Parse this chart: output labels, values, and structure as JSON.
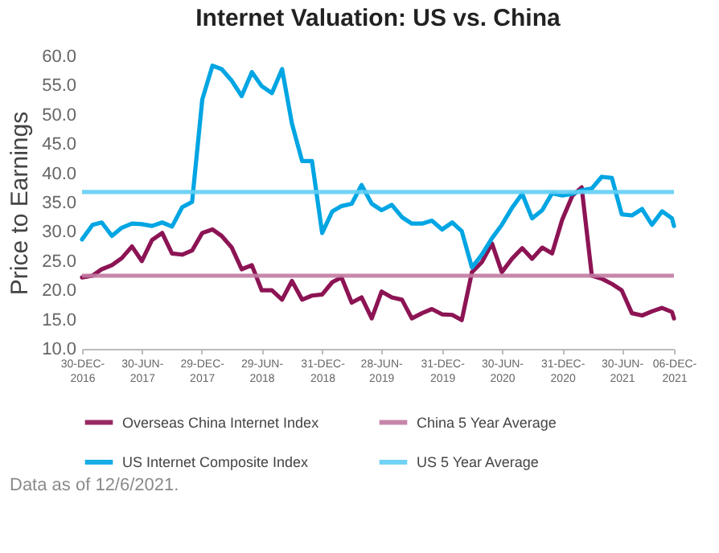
{
  "chart_data": {
    "type": "line",
    "title": "Internet Valuation: US vs. China",
    "ylabel": "Price to Earnings",
    "x": [
      "2016-12-30",
      "2017-01-31",
      "2017-02-28",
      "2017-03-31",
      "2017-04-30",
      "2017-05-31",
      "2017-06-30",
      "2017-07-31",
      "2017-08-31",
      "2017-09-30",
      "2017-10-31",
      "2017-11-30",
      "2017-12-31",
      "2018-01-31",
      "2018-02-28",
      "2018-03-31",
      "2018-04-30",
      "2018-05-31",
      "2018-06-30",
      "2018-07-31",
      "2018-08-31",
      "2018-09-30",
      "2018-10-31",
      "2018-11-30",
      "2018-12-31",
      "2019-01-31",
      "2019-02-28",
      "2019-03-31",
      "2019-04-30",
      "2019-05-31",
      "2019-06-30",
      "2019-07-31",
      "2019-08-31",
      "2019-09-30",
      "2019-10-31",
      "2019-11-30",
      "2019-12-31",
      "2020-01-31",
      "2020-02-29",
      "2020-03-31",
      "2020-04-30",
      "2020-05-31",
      "2020-06-30",
      "2020-07-31",
      "2020-08-31",
      "2020-09-30",
      "2020-10-31",
      "2020-11-30",
      "2020-12-31",
      "2021-01-31",
      "2021-02-28",
      "2021-03-31",
      "2021-04-30",
      "2021-05-31",
      "2021-06-30",
      "2021-07-31",
      "2021-08-31",
      "2021-09-30",
      "2021-10-31",
      "2021-11-30",
      "2021-12-06"
    ],
    "series": [
      {
        "name": "Overseas China Internet Index",
        "color": "#8c1454",
        "values": [
          22.2,
          22.5,
          23.6,
          24.3,
          25.5,
          27.5,
          25.0,
          28.6,
          29.8,
          26.3,
          26.1,
          26.8,
          29.8,
          30.4,
          29.3,
          27.3,
          23.6,
          24.3,
          20.0,
          20.0,
          18.4,
          21.6,
          18.4,
          19.1,
          19.3,
          21.4,
          22.2,
          17.9,
          18.8,
          15.2,
          19.8,
          18.8,
          18.4,
          15.2,
          16.1,
          16.8,
          15.9,
          15.8,
          14.9,
          23.1,
          24.8,
          28.0,
          23.1,
          25.4,
          27.2,
          25.4,
          27.3,
          26.3,
          32.1,
          36.2,
          37.6,
          22.5,
          22.0,
          21.1,
          20.0,
          16.1,
          15.7,
          16.4,
          17.0,
          16.3,
          15.2
        ]
      },
      {
        "name": "US Internet Composite Index",
        "color": "#00a5e3",
        "values": [
          28.7,
          31.2,
          31.6,
          29.3,
          30.7,
          31.4,
          31.3,
          31.0,
          31.6,
          30.9,
          34.2,
          35.1,
          52.6,
          58.4,
          57.8,
          55.8,
          53.2,
          57.3,
          54.9,
          53.7,
          57.8,
          48.5,
          42.1,
          42.1,
          29.8,
          33.5,
          34.4,
          34.8,
          38.0,
          34.8,
          33.7,
          34.6,
          32.5,
          31.4,
          31.4,
          31.9,
          30.4,
          31.6,
          30.1,
          23.9,
          26.1,
          28.9,
          31.2,
          34.1,
          36.5,
          32.3,
          33.7,
          36.6,
          36.2,
          36.5,
          37.1,
          37.4,
          39.4,
          39.2,
          33.0,
          32.8,
          33.9,
          31.2,
          33.5,
          32.3,
          31.0
        ]
      }
    ],
    "ref_lines": [
      {
        "axis": "y",
        "value": 22.5,
        "label": "China 5 Year Average",
        "color": "#c27aa2"
      },
      {
        "axis": "y",
        "value": 36.8,
        "label": "US 5 Year Average",
        "color": "#62cff4"
      }
    ],
    "xlim": [
      "2016-12-30",
      "2021-12-06"
    ],
    "xticks": [
      {
        "value": "2016-12-30",
        "label": "30-DEC-2016"
      },
      {
        "value": "2017-06-30",
        "label": "30-JUN-2017"
      },
      {
        "value": "2017-12-29",
        "label": "29-DEC-2017"
      },
      {
        "value": "2018-06-29",
        "label": "29-JUN-2018"
      },
      {
        "value": "2018-12-31",
        "label": "31-DEC-2018"
      },
      {
        "value": "2019-06-28",
        "label": "28-JUN-2019"
      },
      {
        "value": "2019-12-31",
        "label": "31-DEC-2019"
      },
      {
        "value": "2020-06-30",
        "label": "30-JUN-2020"
      },
      {
        "value": "2020-12-31",
        "label": "31-DEC-2020"
      },
      {
        "value": "2021-06-30",
        "label": "30-JUN-2021"
      },
      {
        "value": "2021-12-06",
        "label": "06-DEC-2021"
      }
    ],
    "ylim": [
      10,
      60
    ],
    "yticks": [
      {
        "value": 10,
        "label": "10.0"
      },
      {
        "value": 15,
        "label": "15.0"
      },
      {
        "value": 20,
        "label": "20.0"
      },
      {
        "value": 25,
        "label": "25.0"
      },
      {
        "value": 30,
        "label": "30.0"
      },
      {
        "value": 35,
        "label": "35.0"
      },
      {
        "value": 40,
        "label": "40.0"
      },
      {
        "value": 45,
        "label": "45.0"
      },
      {
        "value": 50,
        "label": "50.0"
      },
      {
        "value": 55,
        "label": "55.0"
      },
      {
        "value": 60,
        "label": "60.0"
      }
    ],
    "grid": false,
    "legend": "bottom",
    "line_style": "solid",
    "marker": "none",
    "annotations": [
      "Data as of 12/6/2021."
    ]
  }
}
